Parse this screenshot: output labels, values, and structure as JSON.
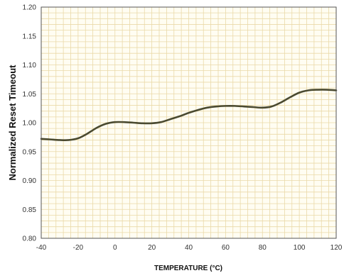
{
  "chart_data": {
    "type": "line",
    "title": "",
    "xlabel": "TEMPERATURE (°C)",
    "ylabel": "Normalized Reset Timeout",
    "xlim": [
      -40,
      120
    ],
    "ylim": [
      0.8,
      1.2
    ],
    "x_ticks": [
      "-40",
      "-20",
      "0",
      "20",
      "40",
      "60",
      "80",
      "100",
      "120"
    ],
    "y_ticks": [
      "0.80",
      "0.85",
      "0.90",
      "0.95",
      "1.00",
      "1.05",
      "1.10",
      "1.15",
      "1.20"
    ],
    "grid": true,
    "colors": {
      "line": "#4a4a30",
      "grid": "#ead9a8",
      "plot_bg": "#fffdf2",
      "frame": "#555555"
    },
    "series": [
      {
        "x": [
          -40,
          -35,
          -30,
          -25,
          -20,
          -15,
          -10,
          -5,
          0,
          5,
          10,
          15,
          20,
          25,
          30,
          35,
          40,
          45,
          50,
          55,
          60,
          65,
          70,
          75,
          80,
          85,
          90,
          95,
          100,
          105,
          110,
          115,
          120
        ],
        "values": [
          0.972,
          0.971,
          0.97,
          0.97,
          0.973,
          0.981,
          0.991,
          0.998,
          1.001,
          1.001,
          1.0,
          0.999,
          0.999,
          1.001,
          1.006,
          1.011,
          1.017,
          1.022,
          1.026,
          1.028,
          1.029,
          1.029,
          1.028,
          1.027,
          1.026,
          1.028,
          1.035,
          1.044,
          1.052,
          1.056,
          1.057,
          1.057,
          1.056
        ]
      }
    ]
  }
}
